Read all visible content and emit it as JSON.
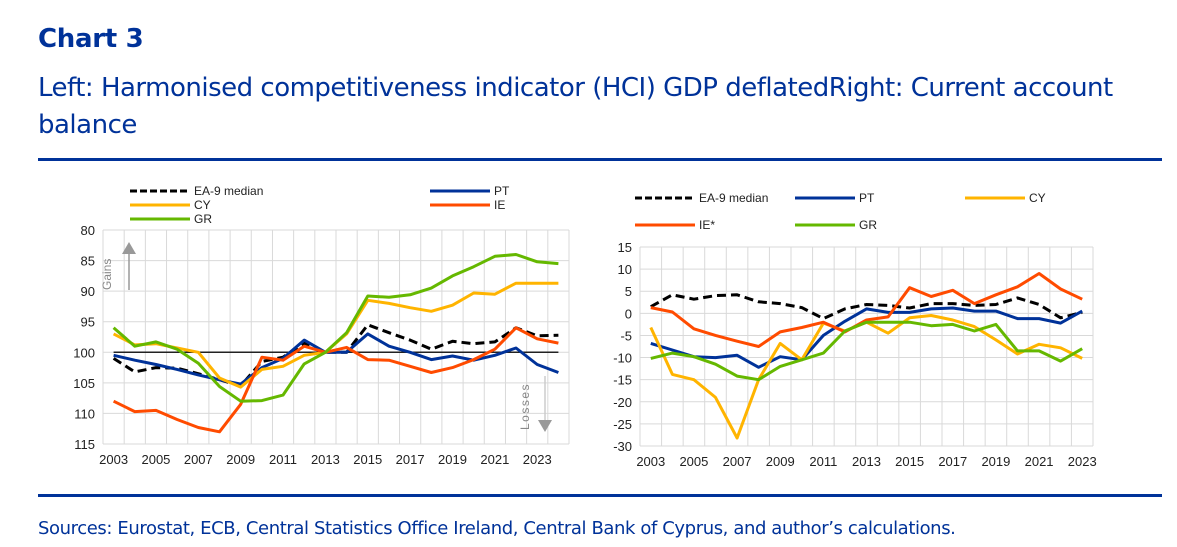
{
  "header": {
    "title": "Chart 3",
    "subtitle": "Left: Harmonised competitiveness indicator (HCI) GDP deflatedRight: Current account balance"
  },
  "footer": {
    "sources": "Sources: Eurostat, ECB, Central Statistics Office Ireland, Central Bank of Cyprus, and author’s calculations."
  },
  "colors": {
    "title": "#003299",
    "EA-9 median": "#000000",
    "PT": "#003299",
    "CY": "#FFB400",
    "IE": "#FF4B00",
    "GR": "#65B800",
    "grid": "#d9d9d9"
  },
  "chart_data": [
    {
      "type": "line",
      "title": "Harmonised competitiveness indicator (HCI) GDP deflated",
      "xlabel": "",
      "ylabel": "",
      "y_inverted": true,
      "ylim": [
        80,
        115
      ],
      "yticks": [
        80,
        85,
        90,
        95,
        100,
        105,
        110,
        115
      ],
      "xlim": [
        2002.5,
        2024.5
      ],
      "xticks": [
        2003,
        2005,
        2007,
        2009,
        2011,
        2013,
        2015,
        2017,
        2019,
        2021,
        2023
      ],
      "grid": true,
      "reference_line": 100,
      "annotations": [
        {
          "text": "Gains",
          "direction": "up",
          "placement": "top-left"
        },
        {
          "text": "Losses",
          "direction": "down",
          "placement": "bottom-right"
        }
      ],
      "legend": {
        "placement": "top",
        "entries": [
          "EA-9 median",
          "PT",
          "CY",
          "IE",
          "GR"
        ]
      },
      "x": [
        2003,
        2004,
        2005,
        2006,
        2007,
        2008,
        2009,
        2010,
        2011,
        2012,
        2013,
        2014,
        2015,
        2016,
        2017,
        2018,
        2019,
        2020,
        2021,
        2022,
        2023,
        2024
      ],
      "series": [
        {
          "name": "EA-9 median",
          "style": "dashed",
          "values": [
            101.0,
            103.2,
            102.5,
            102.6,
            103.5,
            104.5,
            105.5,
            101.5,
            100.8,
            98.5,
            100.0,
            100.0,
            95.5,
            96.8,
            98.0,
            99.5,
            98.2,
            98.6,
            98.3,
            96.0,
            97.3,
            97.2
          ]
        },
        {
          "name": "PT",
          "style": "solid",
          "values": [
            100.5,
            101.3,
            102.0,
            102.8,
            103.7,
            104.5,
            105.2,
            102.5,
            101.0,
            98.0,
            100.0,
            100.0,
            97.0,
            99.0,
            100.0,
            101.2,
            100.6,
            101.3,
            100.5,
            99.3,
            102.0,
            103.3
          ]
        },
        {
          "name": "CY",
          "style": "solid",
          "values": [
            97.0,
            98.8,
            98.6,
            99.3,
            100.0,
            104.2,
            105.7,
            102.8,
            102.3,
            100.5,
            100.0,
            97.0,
            91.5,
            92.0,
            92.7,
            93.3,
            92.3,
            90.3,
            90.5,
            88.7,
            88.7,
            88.7
          ]
        },
        {
          "name": "IE",
          "style": "solid",
          "values": [
            108.0,
            109.7,
            109.5,
            111.0,
            112.3,
            113.0,
            108.5,
            100.8,
            101.3,
            99.0,
            100.0,
            99.2,
            101.2,
            101.3,
            102.3,
            103.3,
            102.5,
            101.2,
            99.5,
            96.0,
            97.8,
            98.5
          ]
        },
        {
          "name": "GR",
          "style": "solid",
          "values": [
            96.0,
            99.0,
            98.3,
            99.5,
            101.8,
            105.6,
            108.0,
            107.9,
            107.0,
            101.9,
            100.0,
            96.8,
            90.8,
            91.0,
            90.6,
            89.5,
            87.5,
            86.0,
            84.3,
            84.0,
            85.2,
            85.5
          ]
        }
      ]
    },
    {
      "type": "line",
      "title": "Current account balance",
      "xlabel": "",
      "ylabel": "",
      "ylim": [
        -30,
        15
      ],
      "yticks": [
        15,
        10,
        5,
        0,
        -5,
        -10,
        -15,
        -20,
        -25,
        -30
      ],
      "xlim": [
        2002.5,
        2023.5
      ],
      "xticks": [
        2003,
        2005,
        2007,
        2009,
        2011,
        2013,
        2015,
        2017,
        2019,
        2021,
        2023
      ],
      "grid": true,
      "legend": {
        "placement": "top",
        "entries": [
          "EA-9 median",
          "PT",
          "CY",
          "IE*",
          "GR"
        ]
      },
      "x": [
        2003,
        2004,
        2005,
        2006,
        2007,
        2008,
        2009,
        2010,
        2011,
        2012,
        2013,
        2014,
        2015,
        2016,
        2017,
        2018,
        2019,
        2020,
        2021,
        2022,
        2023
      ],
      "series": [
        {
          "name": "EA-9 median",
          "style": "dashed",
          "values": [
            1.5,
            4.2,
            3.2,
            4.0,
            4.2,
            2.6,
            2.2,
            1.3,
            -1.2,
            1.0,
            2.0,
            1.8,
            1.2,
            2.2,
            2.2,
            1.8,
            2.0,
            3.5,
            2.0,
            -1.0,
            0.2
          ]
        },
        {
          "name": "PT",
          "style": "solid",
          "values": [
            -6.8,
            -8.3,
            -9.8,
            -10.0,
            -9.5,
            -12.2,
            -9.8,
            -10.5,
            -5.0,
            -1.8,
            1.0,
            0.2,
            0.2,
            1.0,
            1.2,
            0.5,
            0.5,
            -1.2,
            -1.2,
            -2.2,
            0.5
          ]
        },
        {
          "name": "CY",
          "style": "solid",
          "values": [
            -3.2,
            -13.8,
            -15.0,
            -19.0,
            -28.2,
            -15.0,
            -6.8,
            -10.5,
            -2.2,
            -4.0,
            -2.0,
            -4.5,
            -1.0,
            -0.5,
            -1.5,
            -3.0,
            -6.0,
            -9.2,
            -7.0,
            -7.8,
            -10.2
          ]
        },
        {
          "name": "IE*",
          "style": "solid",
          "values": [
            1.3,
            0.3,
            -3.5,
            -5.0,
            -6.3,
            -7.5,
            -4.2,
            -3.2,
            -2.0,
            -4.2,
            -1.5,
            -0.8,
            5.8,
            3.8,
            5.2,
            2.2,
            4.2,
            6.0,
            9.0,
            5.5,
            3.2
          ]
        },
        {
          "name": "GR",
          "style": "solid",
          "values": [
            -10.2,
            -9.0,
            -9.8,
            -11.5,
            -14.2,
            -15.0,
            -12.0,
            -10.5,
            -9.0,
            -4.0,
            -2.0,
            -2.0,
            -2.0,
            -2.8,
            -2.5,
            -4.0,
            -2.5,
            -8.5,
            -8.5,
            -10.8,
            -8.0
          ]
        }
      ]
    }
  ]
}
